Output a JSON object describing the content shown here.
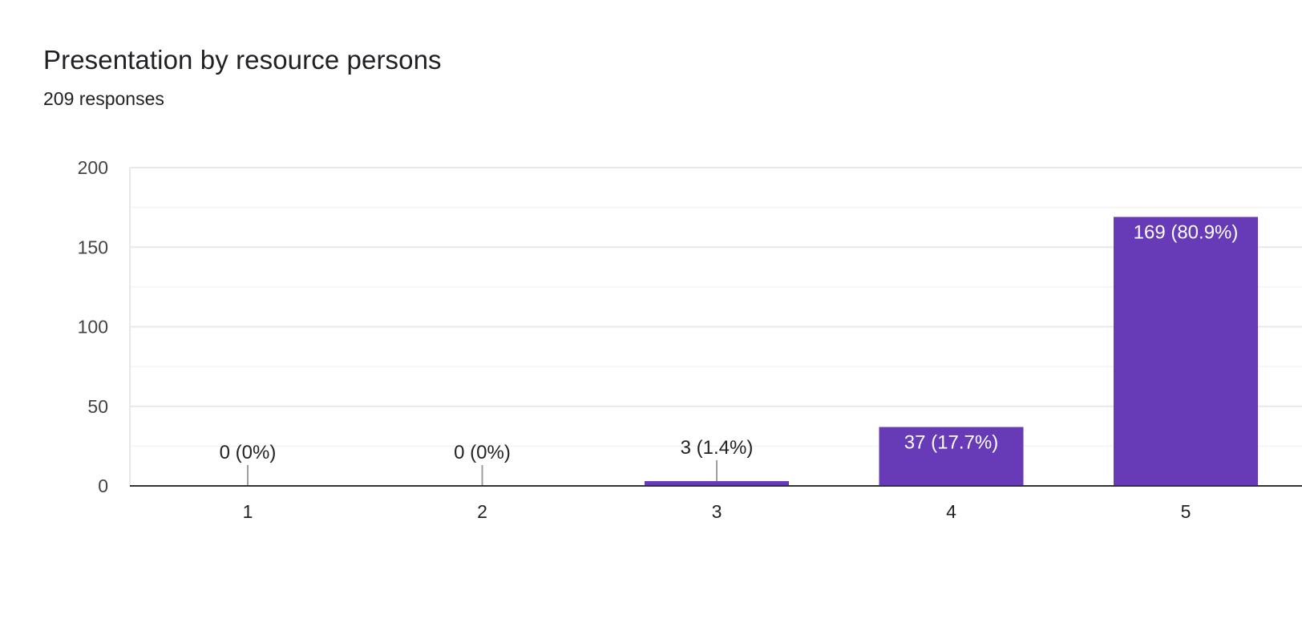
{
  "header": {
    "title": "Presentation by resource persons",
    "responses": "209 responses"
  },
  "colors": {
    "bar": "#673ab7",
    "grid_major": "#e8e8e8",
    "grid_minor": "#f3f3f3",
    "axis": "#333333",
    "leader": "#9e9e9e",
    "label_inside": "#ffffff",
    "label_outside": "#222222"
  },
  "chart_data": {
    "type": "bar",
    "title": "Presentation by resource persons",
    "subtitle": "209 responses",
    "categories": [
      "1",
      "2",
      "3",
      "4",
      "5"
    ],
    "values": [
      0,
      0,
      3,
      37,
      169
    ],
    "data_labels": [
      "0 (0%)",
      "0 (0%)",
      "3 (1.4%)",
      "37 (17.7%)",
      "169 (80.9%)"
    ],
    "yticks": [
      0,
      50,
      100,
      150,
      200
    ],
    "ylim": [
      0,
      200
    ],
    "grid": true,
    "legend": "none",
    "xlabel": "",
    "ylabel": ""
  }
}
